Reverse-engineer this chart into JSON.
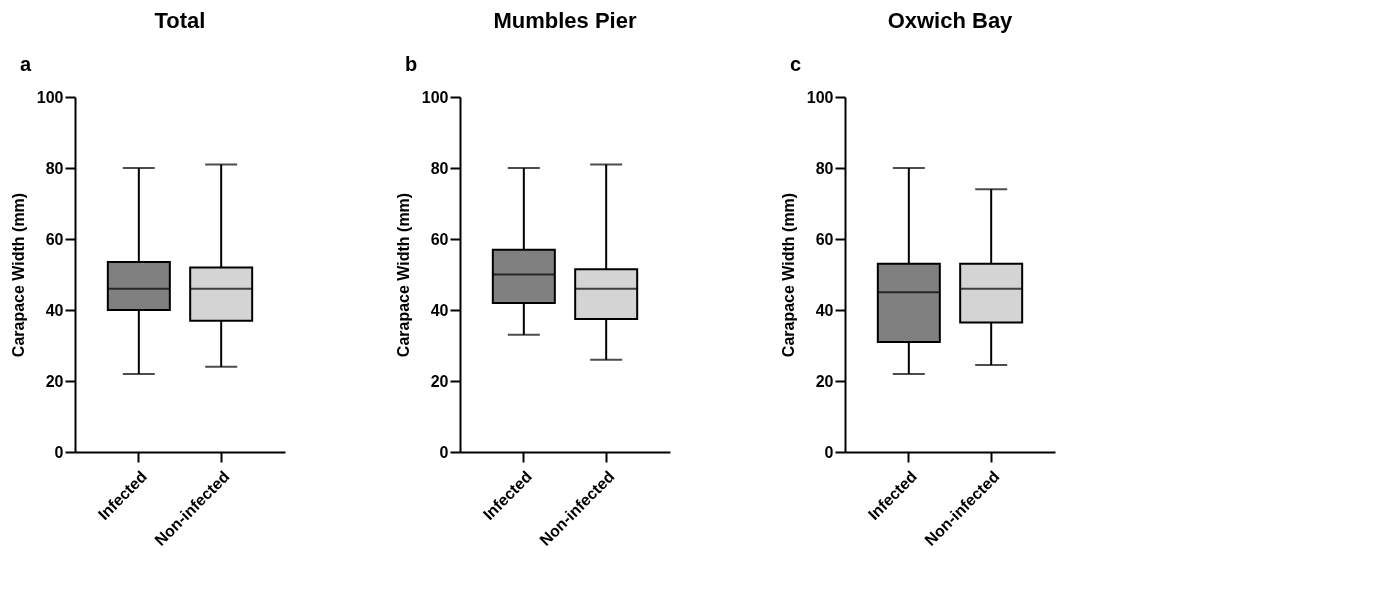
{
  "chart_data": [
    {
      "type": "box",
      "title": "Total",
      "annotations": [
        "a"
      ],
      "ylabel": "Carapace Width (mm)",
      "categories": [
        "Infected",
        "Non-infected"
      ],
      "colors": [
        "#808080",
        "#d4d4d4"
      ],
      "ylim": [
        0,
        100
      ],
      "yticks": [
        0,
        20,
        40,
        60,
        80,
        100
      ],
      "grid": false,
      "legend": false,
      "boxes": [
        {
          "low": 22,
          "q1": 40,
          "median": 46,
          "q3": 53.5,
          "high": 80
        },
        {
          "low": 24,
          "q1": 37,
          "median": 46,
          "q3": 52,
          "high": 81
        }
      ]
    },
    {
      "type": "box",
      "title": "Mumbles Pier",
      "annotations": [
        "b"
      ],
      "ylabel": "Carapace Width (mm)",
      "categories": [
        "Infected",
        "Non-infected"
      ],
      "colors": [
        "#808080",
        "#d4d4d4"
      ],
      "ylim": [
        0,
        100
      ],
      "yticks": [
        0,
        20,
        40,
        60,
        80,
        100
      ],
      "grid": false,
      "legend": false,
      "boxes": [
        {
          "low": 33,
          "q1": 42,
          "median": 50,
          "q3": 57,
          "high": 80
        },
        {
          "low": 26,
          "q1": 37.5,
          "median": 46,
          "q3": 51.5,
          "high": 81
        }
      ]
    },
    {
      "type": "box",
      "title": "Oxwich Bay",
      "annotations": [
        "c"
      ],
      "ylabel": "Carapace Width (mm)",
      "categories": [
        "Infected",
        "Non-infected"
      ],
      "colors": [
        "#808080",
        "#d4d4d4"
      ],
      "ylim": [
        0,
        100
      ],
      "yticks": [
        0,
        20,
        40,
        60,
        80,
        100
      ],
      "grid": false,
      "legend": false,
      "boxes": [
        {
          "low": 22,
          "q1": 31,
          "median": 45,
          "q3": 53,
          "high": 80
        },
        {
          "low": 24.5,
          "q1": 36.5,
          "median": 46,
          "q3": 53,
          "high": 74
        }
      ]
    }
  ]
}
